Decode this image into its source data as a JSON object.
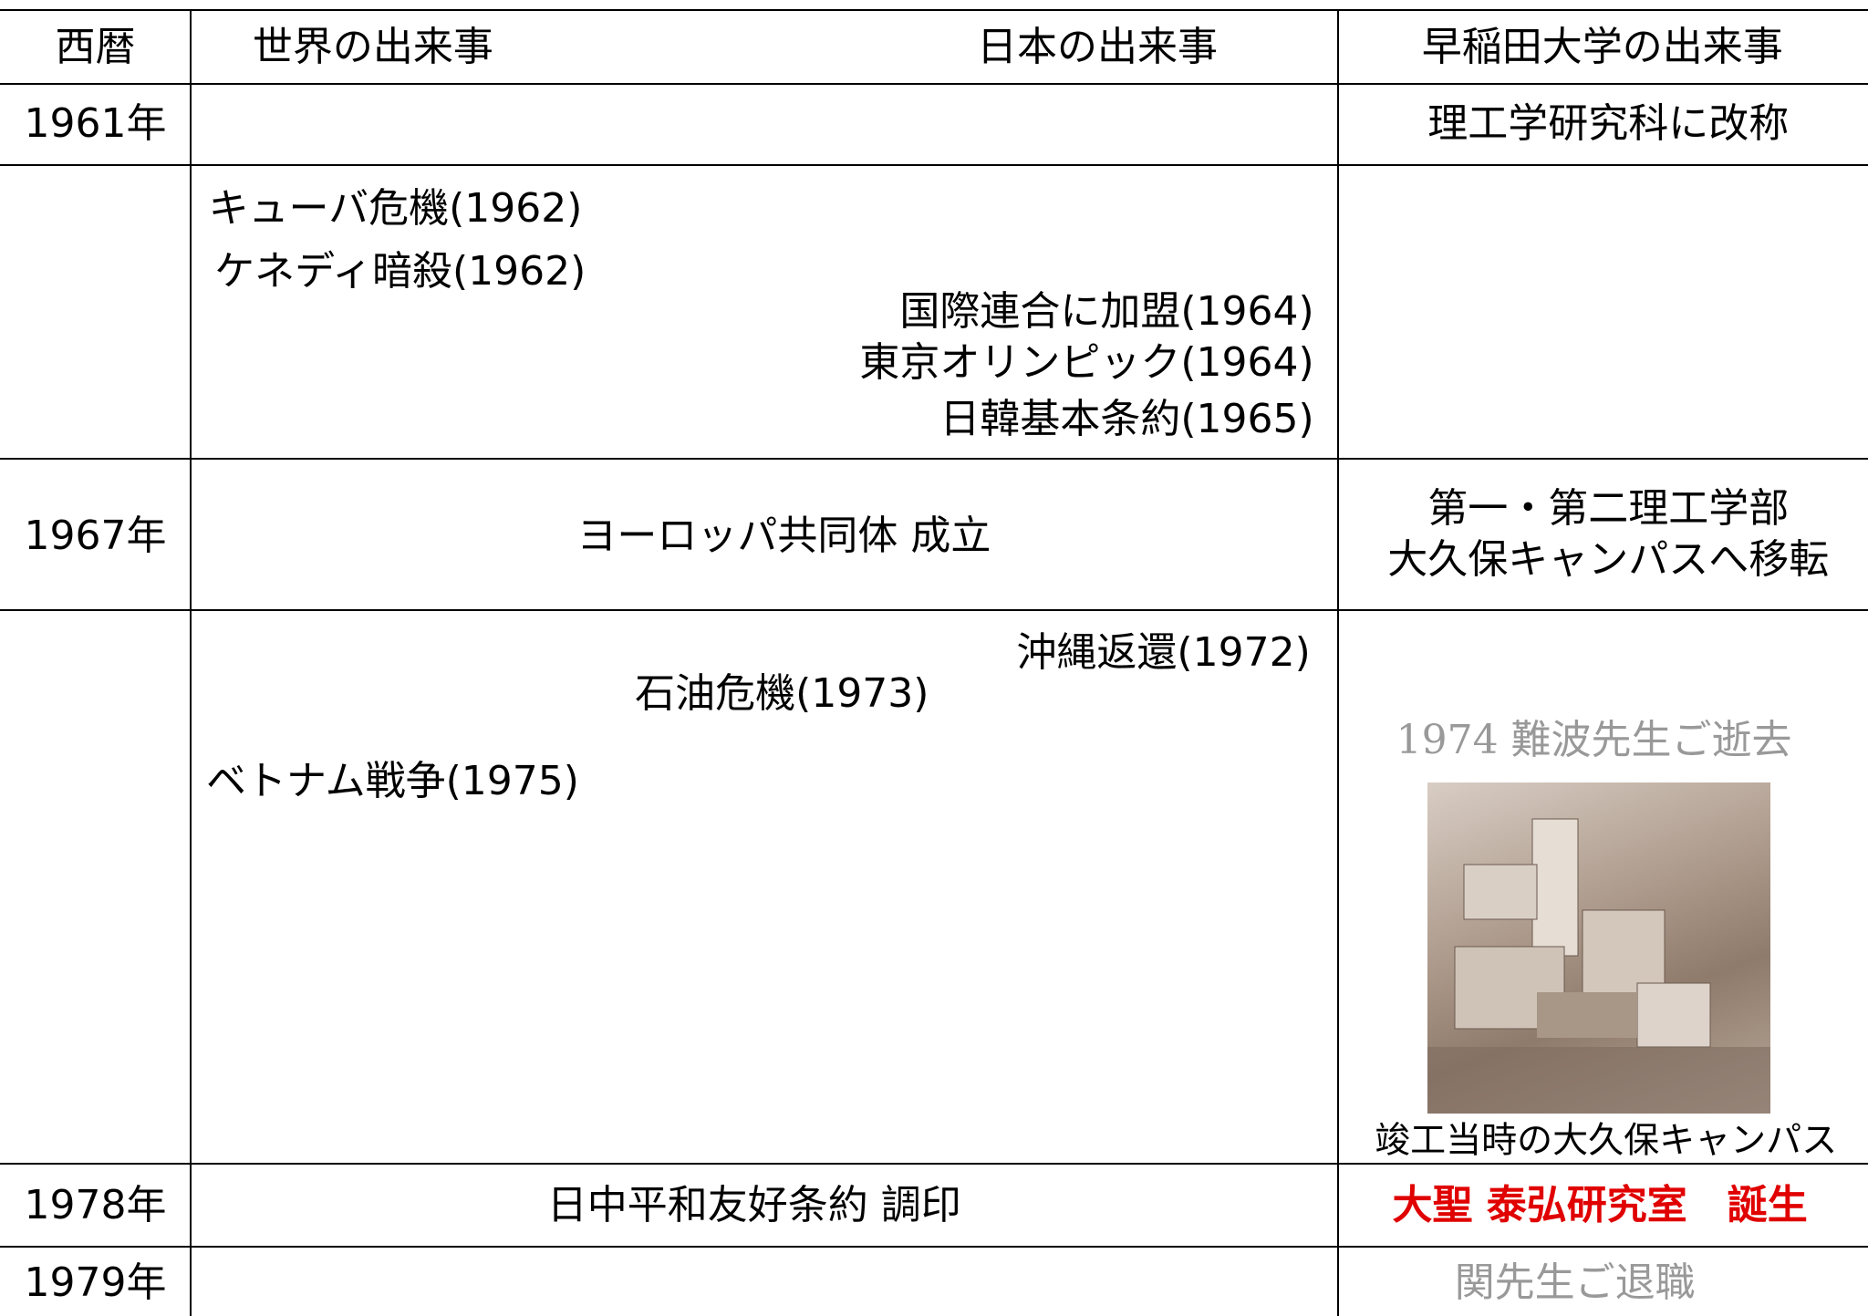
{
  "header": [
    "西暦",
    "世界の出来事",
    "日本の出来事",
    "早稲田大学の出来事"
  ],
  "rows": [
    {
      "year": "1961年",
      "waseda": [
        "理工学研究科に改称"
      ]
    },
    {
      "events": [
        "キューバ危機(1962)",
        "ケネディ暗殺(1962)",
        "国際連合に加盟(1964)",
        "東京オリンピック(1964)",
        "日韓基本条約(1965)"
      ]
    },
    {
      "year": "1967年",
      "events": [
        "ヨーロッパ共同体 成立"
      ],
      "waseda": [
        "第一・第二理工学部",
        "大久保キャンパスへ移転"
      ]
    },
    {
      "events": [
        "沖縄返還(1972)",
        "石油危機(1973)",
        "ベトナム戦争(1975)"
      ],
      "waseda": [
        "1974 難波先生ご逝去"
      ],
      "photo_caption": "竣工当時の大久保キャンパス"
    },
    {
      "year": "1978年",
      "events": [
        "日中平和友好条約 調印"
      ],
      "waseda": [
        "大聖 泰弘研究室　誕生"
      ]
    },
    {
      "year": "1979年",
      "waseda": [
        "関先生ご退職"
      ]
    }
  ]
}
